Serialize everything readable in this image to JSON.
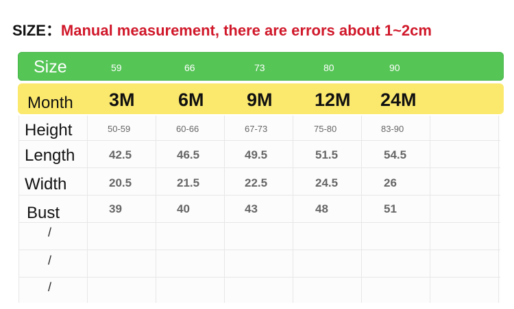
{
  "title": {
    "label": "SIZE：",
    "note": "Manual measurement, there are errors about 1~2cm"
  },
  "colors": {
    "size_band": "#55c556",
    "month_band": "#fbe96e",
    "note_red": "#d0182a"
  },
  "size_row": {
    "label": "Size",
    "values": [
      "59",
      "66",
      "73",
      "80",
      "90"
    ]
  },
  "month_row": {
    "label": "Month",
    "values": [
      "3M",
      "6M",
      "9M",
      "12M",
      "24M"
    ]
  },
  "rows": [
    {
      "label": "Height",
      "values": [
        "50-59",
        "60-66",
        "67-73",
        "75-80",
        "83-90"
      ]
    },
    {
      "label": "Length",
      "values": [
        "42.5",
        "46.5",
        "49.5",
        "51.5",
        "54.5"
      ]
    },
    {
      "label": "Width",
      "values": [
        "20.5",
        "21.5",
        "22.5",
        "24.5",
        "26"
      ]
    },
    {
      "label": "Bust",
      "values": [
        "39",
        "40",
        "43",
        "48",
        "51"
      ]
    }
  ],
  "empty_rows": [
    "/",
    "/",
    "/"
  ]
}
